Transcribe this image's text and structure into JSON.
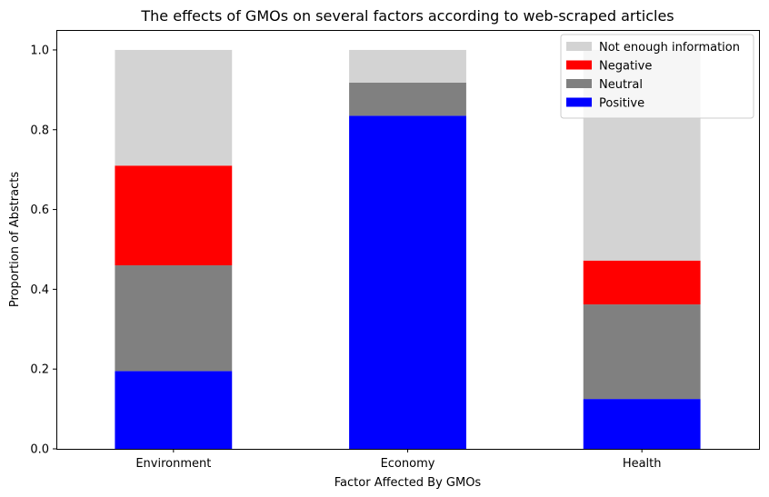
{
  "chart_data": {
    "type": "bar",
    "stacked": true,
    "title": "The effects of GMOs on several factors according to web-scraped articles",
    "xlabel": "Factor Affected By GMOs",
    "ylabel": "Proportion of Abstracts",
    "categories": [
      "Environment",
      "Economy",
      "Health"
    ],
    "ylim": [
      0,
      1.05
    ],
    "yticks": [
      "0.0",
      "0.2",
      "0.4",
      "0.6",
      "0.8",
      "1.0"
    ],
    "ytick_values": [
      0,
      0.2,
      0.4,
      0.6,
      0.8,
      1.0
    ],
    "grid": false,
    "legend_position": "top-right",
    "series": [
      {
        "name": "Positive",
        "color": "#0000ff",
        "values": [
          0.195,
          0.835,
          0.125
        ]
      },
      {
        "name": "Neutral",
        "color": "#808080",
        "values": [
          0.265,
          0.083,
          0.237
        ]
      },
      {
        "name": "Negative",
        "color": "#ff0000",
        "values": [
          0.25,
          0.0,
          0.11
        ]
      },
      {
        "name": "Not enough information",
        "color": "#d3d3d3",
        "values": [
          0.29,
          0.082,
          0.528
        ]
      }
    ],
    "legend_order": [
      "Not enough information",
      "Negative",
      "Neutral",
      "Positive"
    ]
  }
}
